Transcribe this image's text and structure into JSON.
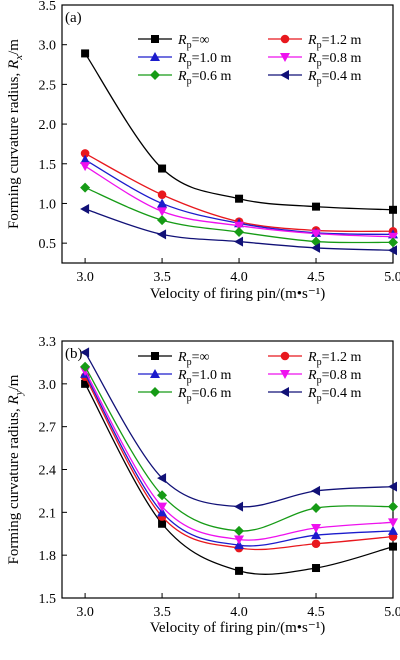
{
  "chart_data": [
    {
      "type": "line",
      "panel_label": "(a)",
      "xlabel": "Velocity of firing pin/(m•s⁻¹)",
      "ylabel": "Forming curvature radius, Rₓ/m",
      "ylabel_parts": {
        "pre": "Forming curvature radius, ",
        "sym": "R",
        "sub": "x",
        "post": "/m"
      },
      "x": [
        3.0,
        3.5,
        4.0,
        4.5,
        5.0
      ],
      "xlim": [
        2.85,
        5.0
      ],
      "ylim": [
        0.25,
        3.5
      ],
      "xticks": [
        "3.0",
        "3.5",
        "4.0",
        "4.5",
        "5.0"
      ],
      "yticks": [
        "0.5",
        "1.0",
        "1.5",
        "2.0",
        "2.5",
        "3.0",
        "3.5"
      ],
      "ytick_values": [
        0.5,
        1.0,
        1.5,
        2.0,
        2.5,
        3.0,
        3.5
      ],
      "series": [
        {
          "name": "Rp=∞",
          "sym": "R",
          "sub": "p",
          "rest": "=∞",
          "color": "#000000",
          "marker": "square",
          "values": [
            2.89,
            1.44,
            1.06,
            0.96,
            0.92
          ]
        },
        {
          "name": "Rp=1.2 m",
          "sym": "R",
          "sub": "p",
          "rest": "=1.2 m",
          "color": "#e8181e",
          "marker": "circle",
          "values": [
            1.63,
            1.11,
            0.77,
            0.66,
            0.65
          ]
        },
        {
          "name": "Rp=1.0 m",
          "sym": "R",
          "sub": "p",
          "rest": "=1.0 m",
          "color": "#1c1ccc",
          "marker": "triangle-up",
          "values": [
            1.55,
            1.0,
            0.75,
            0.63,
            0.61
          ]
        },
        {
          "name": "Rp=0.8 m",
          "sym": "R",
          "sub": "p",
          "rest": "=0.8 m",
          "color": "#ee11ee",
          "marker": "triangle-down",
          "values": [
            1.47,
            0.9,
            0.72,
            0.62,
            0.58
          ]
        },
        {
          "name": "Rp=0.6 m",
          "sym": "R",
          "sub": "p",
          "rest": "=0.6 m",
          "color": "#169b16",
          "marker": "diamond",
          "values": [
            1.2,
            0.79,
            0.64,
            0.52,
            0.51
          ]
        },
        {
          "name": "Rp=0.4 m",
          "sym": "R",
          "sub": "p",
          "rest": "=0.4 m",
          "color": "#111177",
          "marker": "triangle-left",
          "values": [
            0.93,
            0.61,
            0.52,
            0.44,
            0.41
          ]
        }
      ]
    },
    {
      "type": "line",
      "panel_label": "(b)",
      "xlabel": "Velocity of firing pin/(m•s⁻¹)",
      "ylabel": "Forming curvature radius, Rᵧ/m",
      "ylabel_parts": {
        "pre": "Forming curvature radius, ",
        "sym": "R",
        "sub": "y",
        "post": "/m"
      },
      "x": [
        3.0,
        3.5,
        4.0,
        4.5,
        5.0
      ],
      "xlim": [
        2.85,
        5.0
      ],
      "ylim": [
        1.5,
        3.3
      ],
      "xticks": [
        "3.0",
        "3.5",
        "4.0",
        "4.5",
        "5.0"
      ],
      "yticks": [
        "1.5",
        "1.8",
        "2.1",
        "2.4",
        "2.7",
        "3.0",
        "3.3"
      ],
      "ytick_values": [
        1.5,
        1.8,
        2.1,
        2.4,
        2.7,
        3.0,
        3.3
      ],
      "series": [
        {
          "name": "Rp=∞",
          "sym": "R",
          "sub": "p",
          "rest": "=∞",
          "color": "#000000",
          "marker": "square",
          "values": [
            3.0,
            2.02,
            1.69,
            1.71,
            1.86
          ]
        },
        {
          "name": "Rp=1.2 m",
          "sym": "R",
          "sub": "p",
          "rest": "=1.2 m",
          "color": "#e8181e",
          "marker": "circle",
          "values": [
            3.05,
            2.07,
            1.85,
            1.88,
            1.93
          ]
        },
        {
          "name": "Rp=1.0 m",
          "sym": "R",
          "sub": "p",
          "rest": "=1.0 m",
          "color": "#1c1ccc",
          "marker": "triangle-up",
          "values": [
            3.07,
            2.1,
            1.87,
            1.94,
            1.97
          ]
        },
        {
          "name": "Rp=0.8 m",
          "sym": "R",
          "sub": "p",
          "rest": "=0.8 m",
          "color": "#ee11ee",
          "marker": "triangle-down",
          "values": [
            3.09,
            2.14,
            1.91,
            1.99,
            2.03
          ]
        },
        {
          "name": "Rp=0.6 m",
          "sym": "R",
          "sub": "p",
          "rest": "=0.6 m",
          "color": "#169b16",
          "marker": "diamond",
          "values": [
            3.12,
            2.22,
            1.97,
            2.13,
            2.14
          ]
        },
        {
          "name": "Rp=0.4 m",
          "sym": "R",
          "sub": "p",
          "rest": "=0.4 m",
          "color": "#111177",
          "marker": "triangle-left",
          "values": [
            3.22,
            2.34,
            2.14,
            2.25,
            2.28
          ]
        }
      ]
    }
  ]
}
